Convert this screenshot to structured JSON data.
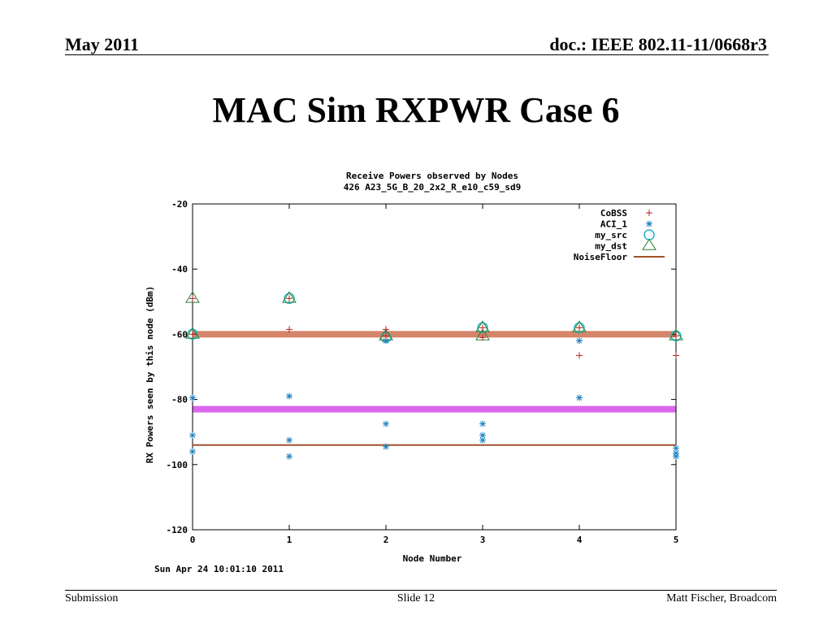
{
  "header": {
    "date": "May 2011",
    "doc": "doc.: IEEE 802.11-11/0668r3"
  },
  "slide_title": "MAC Sim RXPWR Case 6",
  "footer": {
    "left": "Submission",
    "center": "Slide 12",
    "right": "Matt Fischer, Broadcom"
  },
  "colors": {
    "cobss": "#b22222",
    "aci": "#1e7fc0",
    "src": "#1cb8c8",
    "dst": "#2e7d32",
    "noise_floor": "#a0522d",
    "band_orange": "#d4856a",
    "band_magenta": "#dd66ee"
  },
  "chart_data": {
    "type": "scatter",
    "title": "Receive Powers observed by Nodes",
    "subtitle": "426 A23_5G_B_20_2x2_R_e10_c59_sd9",
    "xlabel": "Node Number",
    "ylabel": "RX Powers seen by this node (dBm)",
    "timestamp": "Sun Apr 24 10:01:10 2011",
    "xlim": [
      0,
      5
    ],
    "ylim": [
      -120,
      -20
    ],
    "xticks": [
      "0",
      "1",
      "2",
      "3",
      "4",
      "5"
    ],
    "yticks": [
      "-20",
      "-40",
      "-60",
      "-80",
      "-100",
      "-120"
    ],
    "legend_position": "top-right",
    "series": [
      {
        "name": "CoBSS",
        "marker": "plus",
        "points": [
          [
            0,
            -49
          ],
          [
            0,
            -60
          ],
          [
            1,
            -49
          ],
          [
            1,
            -58.5
          ],
          [
            2,
            -58.5
          ],
          [
            2,
            -60.5
          ],
          [
            3,
            -58
          ],
          [
            3,
            -61
          ],
          [
            4,
            -58
          ],
          [
            4,
            -66.5
          ],
          [
            5,
            -60.5
          ],
          [
            5,
            -66.5
          ]
        ]
      },
      {
        "name": "ACI_1",
        "marker": "star",
        "points": [
          [
            0,
            -79.5
          ],
          [
            0,
            -91
          ],
          [
            0,
            -96
          ],
          [
            1,
            -79
          ],
          [
            1,
            -92.5
          ],
          [
            1,
            -97.5
          ],
          [
            2,
            -62
          ],
          [
            2,
            -87.5
          ],
          [
            2,
            -94.5
          ],
          [
            3,
            -87.5
          ],
          [
            3,
            -91
          ],
          [
            3,
            -92.5
          ],
          [
            4,
            -62
          ],
          [
            4,
            -79.5
          ],
          [
            5,
            -95
          ],
          [
            5,
            -96.5
          ],
          [
            5,
            -97.5
          ]
        ]
      },
      {
        "name": "my_src",
        "marker": "circle",
        "points": [
          [
            0,
            -60
          ],
          [
            1,
            -49
          ],
          [
            2,
            -61
          ],
          [
            3,
            -58
          ],
          [
            4,
            -58
          ],
          [
            5,
            -60.5
          ]
        ]
      },
      {
        "name": "my_dst",
        "marker": "triangle",
        "points": [
          [
            0,
            -49
          ],
          [
            0,
            -60
          ],
          [
            1,
            -49
          ],
          [
            2,
            -60.5
          ],
          [
            3,
            -58
          ],
          [
            3,
            -60.5
          ],
          [
            4,
            -58
          ],
          [
            5,
            -60.5
          ]
        ]
      },
      {
        "name": "NoiseFloor",
        "marker": "line",
        "y": -94
      }
    ],
    "bands": [
      {
        "y_min": -61,
        "y_max": -59,
        "color": "band_orange"
      },
      {
        "y_min": -84,
        "y_max": -82,
        "color": "band_magenta"
      }
    ]
  }
}
